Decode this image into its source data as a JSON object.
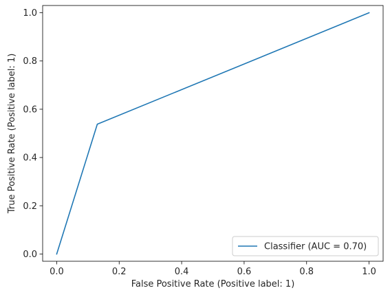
{
  "chart_data": {
    "type": "line",
    "title": "",
    "xlabel": "False Positive Rate (Positive label: 1)",
    "ylabel": "True Positive Rate (Positive label: 1)",
    "xlim": [
      -0.045,
      1.045
    ],
    "ylim": [
      -0.03,
      1.03
    ],
    "x_ticks": [
      0.0,
      0.2,
      0.4,
      0.6,
      0.8,
      1.0
    ],
    "y_ticks": [
      0.0,
      0.2,
      0.4,
      0.6,
      0.8,
      1.0
    ],
    "x_tick_labels": [
      "0.0",
      "0.2",
      "0.4",
      "0.6",
      "0.8",
      "1.0"
    ],
    "y_tick_labels": [
      "0.0",
      "0.2",
      "0.4",
      "0.6",
      "0.8",
      "1.0"
    ],
    "grid": false,
    "legend": {
      "placement": "bottom-right",
      "entries": [
        "Classifier (AUC = 0.70)"
      ]
    },
    "series": [
      {
        "name": "Classifier (AUC = 0.70)",
        "color": "#1f77b4",
        "x": [
          0.0,
          0.13,
          1.0
        ],
        "y": [
          0.0,
          0.538,
          1.0
        ]
      }
    ]
  }
}
